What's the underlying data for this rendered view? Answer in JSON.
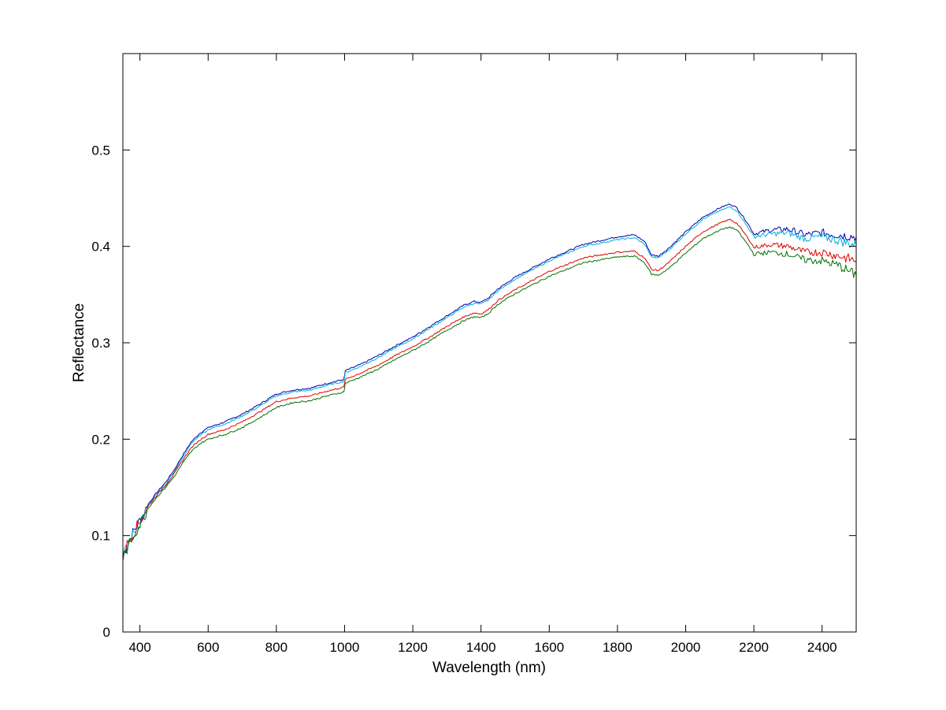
{
  "chart_data": {
    "type": "line",
    "title": "",
    "xlabel": "Wavelength (nm)",
    "ylabel": "Reflectance",
    "xlim": [
      350,
      2500
    ],
    "ylim": [
      0,
      0.6
    ],
    "xticks": [
      400,
      600,
      800,
      1000,
      1200,
      1400,
      1600,
      1800,
      2000,
      2200,
      2400
    ],
    "xtick_labels": [
      "400",
      "600",
      "800",
      "1000",
      "1200",
      "1400",
      "1600",
      "1800",
      "2000",
      "2200",
      "2400"
    ],
    "yticks": [
      0,
      0.1,
      0.2,
      0.3,
      0.4,
      0.5
    ],
    "ytick_labels": [
      "0",
      "0.1",
      "0.2",
      "0.3",
      "0.4",
      "0.5"
    ],
    "grid": false,
    "legend": "none",
    "x": [
      350,
      375,
      400,
      425,
      450,
      475,
      500,
      525,
      550,
      575,
      600,
      650,
      700,
      750,
      800,
      850,
      900,
      950,
      998,
      1002,
      1050,
      1100,
      1150,
      1200,
      1250,
      1300,
      1350,
      1380,
      1400,
      1420,
      1450,
      1500,
      1600,
      1700,
      1800,
      1850,
      1880,
      1900,
      1920,
      1950,
      2000,
      2050,
      2100,
      2130,
      2150,
      2180,
      2200,
      2250,
      2300,
      2350,
      2400,
      2450,
      2500
    ],
    "series": [
      {
        "color": "#0000b0",
        "noise_from_x": 2200,
        "values": [
          0.08,
          0.1,
          0.116,
          0.133,
          0.145,
          0.155,
          0.168,
          0.183,
          0.197,
          0.206,
          0.212,
          0.218,
          0.226,
          0.236,
          0.247,
          0.251,
          0.253,
          0.258,
          0.262,
          0.271,
          0.278,
          0.287,
          0.297,
          0.306,
          0.317,
          0.328,
          0.339,
          0.343,
          0.342,
          0.346,
          0.356,
          0.368,
          0.387,
          0.402,
          0.41,
          0.412,
          0.405,
          0.391,
          0.39,
          0.398,
          0.415,
          0.43,
          0.44,
          0.444,
          0.44,
          0.425,
          0.413,
          0.417,
          0.418,
          0.412,
          0.414,
          0.412,
          0.41
        ]
      },
      {
        "color": "#00b0d8",
        "noise_from_x": 2200,
        "values": [
          0.078,
          0.098,
          0.114,
          0.131,
          0.143,
          0.153,
          0.166,
          0.181,
          0.195,
          0.204,
          0.21,
          0.216,
          0.224,
          0.234,
          0.245,
          0.249,
          0.251,
          0.256,
          0.26,
          0.269,
          0.276,
          0.285,
          0.295,
          0.304,
          0.315,
          0.326,
          0.337,
          0.341,
          0.34,
          0.344,
          0.354,
          0.366,
          0.385,
          0.4,
          0.407,
          0.409,
          0.402,
          0.389,
          0.388,
          0.396,
          0.413,
          0.428,
          0.437,
          0.441,
          0.437,
          0.421,
          0.41,
          0.413,
          0.414,
          0.408,
          0.41,
          0.406,
          0.401
        ]
      },
      {
        "color": "#e00000",
        "noise_from_x": 2200,
        "values": [
          0.082,
          0.099,
          0.115,
          0.131,
          0.142,
          0.152,
          0.164,
          0.178,
          0.191,
          0.199,
          0.205,
          0.21,
          0.218,
          0.228,
          0.239,
          0.243,
          0.245,
          0.25,
          0.254,
          0.262,
          0.269,
          0.277,
          0.287,
          0.296,
          0.306,
          0.317,
          0.327,
          0.331,
          0.33,
          0.334,
          0.344,
          0.355,
          0.374,
          0.388,
          0.394,
          0.395,
          0.388,
          0.376,
          0.375,
          0.383,
          0.4,
          0.415,
          0.424,
          0.428,
          0.424,
          0.41,
          0.399,
          0.402,
          0.4,
          0.394,
          0.394,
          0.39,
          0.385
        ]
      },
      {
        "color": "#007000",
        "noise_from_x": 2200,
        "values": [
          0.076,
          0.096,
          0.112,
          0.129,
          0.14,
          0.15,
          0.161,
          0.175,
          0.187,
          0.195,
          0.2,
          0.205,
          0.212,
          0.222,
          0.233,
          0.238,
          0.24,
          0.245,
          0.249,
          0.258,
          0.265,
          0.273,
          0.283,
          0.292,
          0.302,
          0.313,
          0.323,
          0.327,
          0.326,
          0.33,
          0.34,
          0.351,
          0.369,
          0.383,
          0.389,
          0.39,
          0.383,
          0.371,
          0.37,
          0.377,
          0.393,
          0.408,
          0.417,
          0.42,
          0.417,
          0.403,
          0.392,
          0.394,
          0.392,
          0.386,
          0.385,
          0.38,
          0.37
        ]
      }
    ]
  }
}
